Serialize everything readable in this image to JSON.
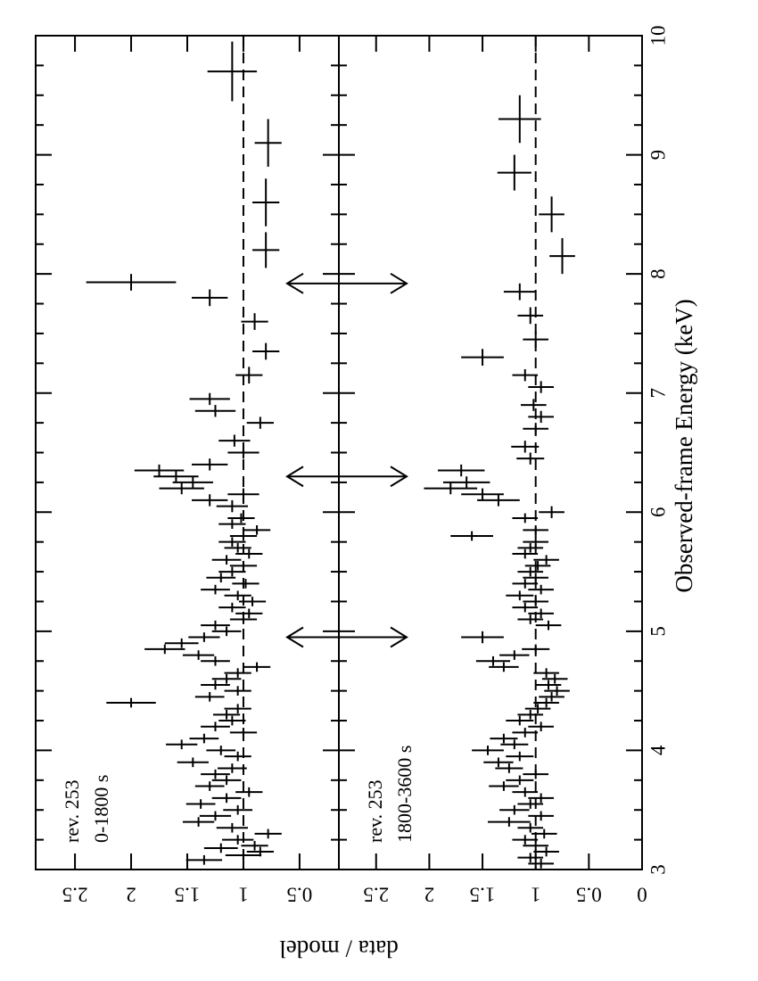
{
  "chart_data": {
    "type": "scatter",
    "orientation": "rotated 90 degrees clockwise",
    "xlabel": "Observed-frame Energy  (keV)",
    "ylabel": "data / model",
    "xlim": [
      3,
      10
    ],
    "x_ticks": [
      "3",
      "4",
      "5",
      "6",
      "7",
      "8",
      "9",
      "10"
    ],
    "reference_line": 1,
    "grid": false,
    "arrows_keV": [
      4.95,
      6.3,
      7.92
    ],
    "panels": [
      {
        "name": "top",
        "labels": [
          "rev. 253",
          "0-1800 s"
        ],
        "ylim": [
          0.15,
          2.85
        ],
        "y_ticks": [
          "0.5",
          "1",
          "1.5",
          "2",
          "2.5"
        ],
        "points": [
          [
            3.08,
            1.35,
            0.16,
            0.04
          ],
          [
            3.12,
            1.0,
            0.16,
            0.04
          ],
          [
            3.15,
            0.85,
            0.12,
            0.04
          ],
          [
            3.18,
            1.2,
            0.15,
            0.04
          ],
          [
            3.2,
            0.9,
            0.12,
            0.04
          ],
          [
            3.25,
            1.05,
            0.14,
            0.04
          ],
          [
            3.3,
            0.78,
            0.12,
            0.04
          ],
          [
            3.35,
            1.1,
            0.14,
            0.04
          ],
          [
            3.4,
            1.4,
            0.14,
            0.04
          ],
          [
            3.45,
            1.25,
            0.14,
            0.04
          ],
          [
            3.5,
            1.05,
            0.13,
            0.04
          ],
          [
            3.55,
            1.38,
            0.13,
            0.04
          ],
          [
            3.6,
            1.15,
            0.13,
            0.04
          ],
          [
            3.65,
            0.95,
            0.12,
            0.04
          ],
          [
            3.7,
            1.3,
            0.13,
            0.04
          ],
          [
            3.75,
            1.15,
            0.13,
            0.04
          ],
          [
            3.8,
            1.25,
            0.13,
            0.04
          ],
          [
            3.85,
            1.1,
            0.13,
            0.04
          ],
          [
            3.9,
            1.45,
            0.14,
            0.04
          ],
          [
            3.95,
            1.05,
            0.12,
            0.04
          ],
          [
            4.0,
            1.2,
            0.13,
            0.04
          ],
          [
            4.05,
            1.55,
            0.14,
            0.04
          ],
          [
            4.1,
            1.35,
            0.13,
            0.04
          ],
          [
            4.15,
            1.0,
            0.12,
            0.04
          ],
          [
            4.2,
            1.25,
            0.13,
            0.04
          ],
          [
            4.25,
            1.1,
            0.12,
            0.04
          ],
          [
            4.3,
            1.15,
            0.12,
            0.04
          ],
          [
            4.35,
            1.05,
            0.12,
            0.04
          ],
          [
            4.4,
            2.0,
            0.22,
            0.04
          ],
          [
            4.45,
            1.3,
            0.13,
            0.04
          ],
          [
            4.5,
            1.05,
            0.12,
            0.04
          ],
          [
            4.55,
            1.25,
            0.13,
            0.04
          ],
          [
            4.6,
            1.15,
            0.13,
            0.04
          ],
          [
            4.65,
            1.05,
            0.12,
            0.04
          ],
          [
            4.7,
            0.88,
            0.12,
            0.04
          ],
          [
            4.75,
            1.25,
            0.13,
            0.04
          ],
          [
            4.8,
            1.4,
            0.14,
            0.04
          ],
          [
            4.85,
            1.7,
            0.18,
            0.04
          ],
          [
            4.9,
            1.55,
            0.15,
            0.04
          ],
          [
            4.95,
            1.35,
            0.14,
            0.04
          ],
          [
            5.0,
            1.15,
            0.13,
            0.04
          ],
          [
            5.05,
            1.25,
            0.13,
            0.04
          ],
          [
            5.1,
            1.0,
            0.12,
            0.04
          ],
          [
            5.15,
            0.95,
            0.12,
            0.04
          ],
          [
            5.2,
            1.1,
            0.12,
            0.04
          ],
          [
            5.25,
            0.92,
            0.12,
            0.04
          ],
          [
            5.3,
            1.05,
            0.12,
            0.04
          ],
          [
            5.35,
            1.25,
            0.13,
            0.04
          ],
          [
            5.4,
            0.98,
            0.12,
            0.04
          ],
          [
            5.45,
            1.2,
            0.13,
            0.04
          ],
          [
            5.5,
            1.1,
            0.12,
            0.04
          ],
          [
            5.55,
            1.0,
            0.12,
            0.04
          ],
          [
            5.6,
            1.15,
            0.13,
            0.04
          ],
          [
            5.65,
            0.95,
            0.12,
            0.04
          ],
          [
            5.7,
            1.05,
            0.12,
            0.04
          ],
          [
            5.75,
            1.1,
            0.12,
            0.04
          ],
          [
            5.8,
            1.0,
            0.12,
            0.04
          ],
          [
            5.85,
            0.88,
            0.12,
            0.04
          ],
          [
            5.9,
            1.1,
            0.12,
            0.04
          ],
          [
            5.95,
            1.02,
            0.12,
            0.04
          ],
          [
            6.05,
            1.1,
            0.14,
            0.05
          ],
          [
            6.1,
            1.3,
            0.16,
            0.05
          ],
          [
            6.15,
            1.0,
            0.14,
            0.05
          ],
          [
            6.2,
            1.55,
            0.2,
            0.05
          ],
          [
            6.25,
            1.45,
            0.18,
            0.05
          ],
          [
            6.3,
            1.6,
            0.2,
            0.05
          ],
          [
            6.35,
            1.75,
            0.22,
            0.05
          ],
          [
            6.4,
            1.3,
            0.16,
            0.05
          ],
          [
            6.5,
            1.0,
            0.14,
            0.05
          ],
          [
            6.6,
            1.08,
            0.14,
            0.05
          ],
          [
            6.75,
            0.85,
            0.12,
            0.05
          ],
          [
            6.85,
            1.25,
            0.18,
            0.05
          ],
          [
            6.95,
            1.3,
            0.18,
            0.05
          ],
          [
            7.15,
            0.95,
            0.12,
            0.07
          ],
          [
            7.35,
            0.8,
            0.12,
            0.07
          ],
          [
            7.6,
            0.9,
            0.12,
            0.07
          ],
          [
            7.8,
            1.3,
            0.16,
            0.07
          ],
          [
            7.93,
            2.0,
            0.4,
            0.07
          ],
          [
            8.2,
            0.8,
            0.12,
            0.15
          ],
          [
            8.6,
            0.8,
            0.12,
            0.2
          ],
          [
            9.1,
            0.78,
            0.12,
            0.2
          ],
          [
            9.7,
            1.1,
            0.22,
            0.25
          ]
        ]
      },
      {
        "name": "bottom",
        "labels": [
          "rev. 253",
          "1800-3600 s"
        ],
        "ylim": [
          0.0,
          2.85
        ],
        "y_ticks": [
          "0",
          "0.5",
          "1",
          "1.5",
          "2",
          "2.5"
        ],
        "points": [
          [
            3.05,
            0.95,
            0.12,
            0.04
          ],
          [
            3.1,
            1.05,
            0.12,
            0.04
          ],
          [
            3.15,
            0.9,
            0.12,
            0.04
          ],
          [
            3.2,
            1.0,
            0.12,
            0.04
          ],
          [
            3.25,
            1.1,
            0.12,
            0.04
          ],
          [
            3.3,
            0.92,
            0.12,
            0.04
          ],
          [
            3.35,
            1.05,
            0.12,
            0.04
          ],
          [
            3.4,
            1.25,
            0.2,
            0.04
          ],
          [
            3.45,
            0.95,
            0.12,
            0.04
          ],
          [
            3.5,
            1.2,
            0.14,
            0.04
          ],
          [
            3.55,
            1.05,
            0.12,
            0.04
          ],
          [
            3.6,
            0.95,
            0.12,
            0.04
          ],
          [
            3.65,
            1.1,
            0.12,
            0.04
          ],
          [
            3.7,
            1.3,
            0.14,
            0.04
          ],
          [
            3.75,
            1.15,
            0.13,
            0.04
          ],
          [
            3.8,
            1.0,
            0.12,
            0.04
          ],
          [
            3.85,
            1.25,
            0.13,
            0.04
          ],
          [
            3.9,
            1.35,
            0.14,
            0.04
          ],
          [
            3.95,
            1.15,
            0.13,
            0.04
          ],
          [
            4.0,
            1.45,
            0.15,
            0.04
          ],
          [
            4.05,
            1.2,
            0.13,
            0.04
          ],
          [
            4.1,
            1.3,
            0.13,
            0.04
          ],
          [
            4.15,
            1.1,
            0.12,
            0.04
          ],
          [
            4.2,
            0.95,
            0.12,
            0.04
          ],
          [
            4.25,
            1.15,
            0.13,
            0.04
          ],
          [
            4.3,
            1.05,
            0.12,
            0.04
          ],
          [
            4.35,
            0.98,
            0.12,
            0.04
          ],
          [
            4.4,
            0.9,
            0.12,
            0.04
          ],
          [
            4.45,
            0.85,
            0.12,
            0.04
          ],
          [
            4.5,
            0.8,
            0.12,
            0.04
          ],
          [
            4.55,
            0.88,
            0.12,
            0.04
          ],
          [
            4.6,
            0.82,
            0.12,
            0.04
          ],
          [
            4.65,
            0.9,
            0.12,
            0.04
          ],
          [
            4.7,
            1.3,
            0.14,
            0.04
          ],
          [
            4.75,
            1.4,
            0.16,
            0.04
          ],
          [
            4.8,
            1.2,
            0.14,
            0.04
          ],
          [
            4.85,
            1.0,
            0.13,
            0.04
          ],
          [
            4.95,
            1.5,
            0.2,
            0.05
          ],
          [
            5.05,
            0.88,
            0.12,
            0.04
          ],
          [
            5.1,
            1.05,
            0.12,
            0.04
          ],
          [
            5.15,
            0.95,
            0.12,
            0.04
          ],
          [
            5.2,
            1.1,
            0.12,
            0.04
          ],
          [
            5.25,
            1.0,
            0.12,
            0.04
          ],
          [
            5.3,
            1.15,
            0.13,
            0.04
          ],
          [
            5.35,
            0.95,
            0.12,
            0.04
          ],
          [
            5.4,
            1.1,
            0.12,
            0.04
          ],
          [
            5.45,
            1.0,
            0.12,
            0.04
          ],
          [
            5.5,
            1.05,
            0.12,
            0.04
          ],
          [
            5.55,
            0.98,
            0.12,
            0.04
          ],
          [
            5.6,
            0.9,
            0.12,
            0.04
          ],
          [
            5.65,
            1.1,
            0.12,
            0.04
          ],
          [
            5.7,
            1.05,
            0.12,
            0.04
          ],
          [
            5.75,
            1.0,
            0.12,
            0.04
          ],
          [
            5.8,
            1.6,
            0.2,
            0.04
          ],
          [
            5.85,
            1.0,
            0.12,
            0.04
          ],
          [
            5.95,
            1.1,
            0.12,
            0.04
          ],
          [
            6.0,
            0.85,
            0.12,
            0.05
          ],
          [
            6.1,
            1.35,
            0.2,
            0.05
          ],
          [
            6.15,
            1.5,
            0.2,
            0.05
          ],
          [
            6.2,
            1.8,
            0.25,
            0.05
          ],
          [
            6.25,
            1.65,
            0.22,
            0.05
          ],
          [
            6.35,
            1.7,
            0.22,
            0.05
          ],
          [
            6.45,
            1.05,
            0.13,
            0.05
          ],
          [
            6.55,
            1.1,
            0.13,
            0.05
          ],
          [
            6.7,
            1.0,
            0.12,
            0.05
          ],
          [
            6.8,
            0.95,
            0.12,
            0.05
          ],
          [
            6.9,
            1.02,
            0.12,
            0.05
          ],
          [
            7.05,
            0.95,
            0.12,
            0.05
          ],
          [
            7.15,
            1.1,
            0.12,
            0.05
          ],
          [
            7.3,
            1.5,
            0.2,
            0.07
          ],
          [
            7.45,
            1.0,
            0.12,
            0.07
          ],
          [
            7.65,
            1.05,
            0.12,
            0.07
          ],
          [
            7.85,
            1.15,
            0.15,
            0.07
          ],
          [
            8.15,
            0.75,
            0.12,
            0.15
          ],
          [
            8.5,
            0.85,
            0.12,
            0.15
          ],
          [
            8.85,
            1.2,
            0.16,
            0.15
          ],
          [
            9.3,
            1.15,
            0.2,
            0.2
          ]
        ]
      }
    ]
  }
}
